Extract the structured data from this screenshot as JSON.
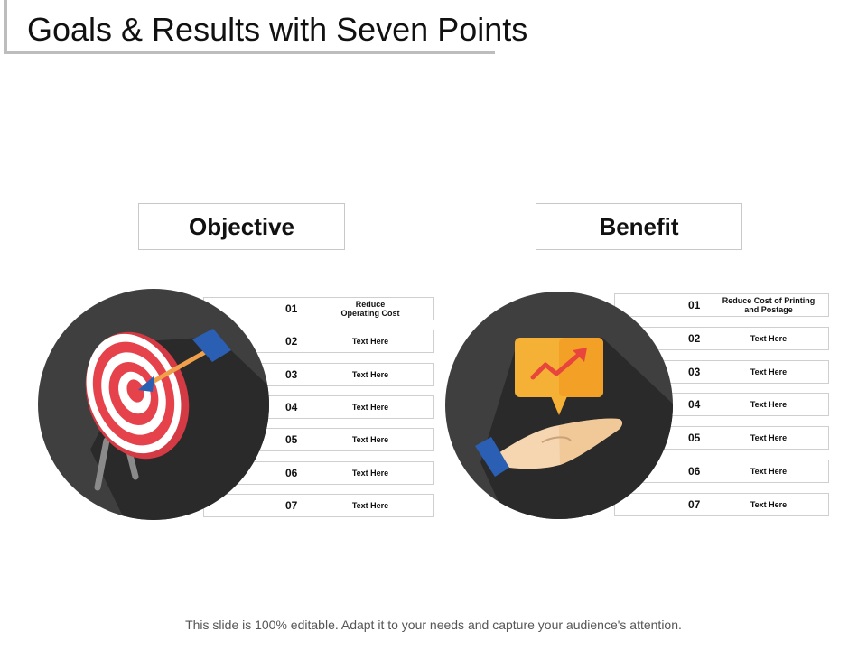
{
  "title": "Goals & Results with Seven Points",
  "footer": "This slide is 100% editable. Adapt it to your needs and capture your audience's attention.",
  "objective": {
    "heading": "Objective",
    "icon": "target-arrow-icon",
    "items": [
      {
        "num": "01",
        "text": "Reduce\nOperating Cost"
      },
      {
        "num": "02",
        "text": "Text Here"
      },
      {
        "num": "03",
        "text": "Text Here"
      },
      {
        "num": "04",
        "text": "Text Here"
      },
      {
        "num": "05",
        "text": "Text Here"
      },
      {
        "num": "06",
        "text": "Text Here"
      },
      {
        "num": "07",
        "text": "Text Here"
      }
    ]
  },
  "benefit": {
    "heading": "Benefit",
    "icon": "hand-growth-chart-icon",
    "items": [
      {
        "num": "01",
        "text": "Reduce Cost of Printing\nand Postage"
      },
      {
        "num": "02",
        "text": "Text Here"
      },
      {
        "num": "03",
        "text": "Text Here"
      },
      {
        "num": "04",
        "text": "Text Here"
      },
      {
        "num": "05",
        "text": "Text Here"
      },
      {
        "num": "06",
        "text": "Text Here"
      },
      {
        "num": "07",
        "text": "Text Here"
      }
    ]
  },
  "colors": {
    "circle": "#3f3f3f",
    "shadow": "#2a2a2a",
    "target_red": "#e5424b",
    "dart_blue": "#2b5fb3",
    "arrow_orange": "#f0a04b",
    "bubble_orange": "#f5b135",
    "chart_red": "#e8453c",
    "hand_skin": "#f6d6b0"
  }
}
